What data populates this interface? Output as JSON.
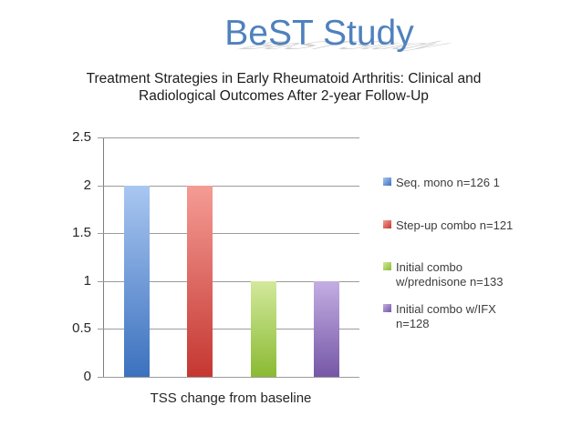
{
  "header": {
    "title": "BeST Study",
    "subtitle_line1": "Treatment Strategies in Early Rheumatoid Arthritis: Clinical and",
    "subtitle_line2": "Radiological Outcomes After 2-year Follow-Up"
  },
  "colors": {
    "title_blue": "#4f81bd",
    "axis_line_gray": "#7f7f7f",
    "gridline_gray": "#9b9b9b",
    "text_dark": "#262626",
    "legend_text_gray": "#3d3d3d"
  },
  "chart_data": {
    "type": "bar",
    "title": "",
    "xlabel": "TSS change from baseline",
    "ylabel": "",
    "ylim": [
      0,
      2.5
    ],
    "ytick_step": 0.5,
    "yticks": [
      "2.5",
      "2",
      "1.5",
      "1",
      "0.5",
      "0"
    ],
    "grid": true,
    "legend_position": "right",
    "series": [
      {
        "name": "Seq. mono n=126 1",
        "value": 2,
        "color_top": "#a9c7f1",
        "color_bottom": "#3b71be"
      },
      {
        "name": "Step-up combo n=121",
        "value": 2,
        "color_top": "#f49c95",
        "color_bottom": "#c53731"
      },
      {
        "name": "Initial combo w/prednisone n=133",
        "value": 1,
        "color_top": "#d2e99b",
        "color_bottom": "#8aba33"
      },
      {
        "name": "Initial combo w/IFX n=128",
        "value": 1,
        "color_top": "#c3aee2",
        "color_bottom": "#7657a7"
      }
    ],
    "legend": [
      {
        "lines": [
          "Seq. mono n=126 1"
        ]
      },
      {
        "lines": [
          "Step-up combo n=121"
        ]
      },
      {
        "lines": [
          "Initial combo",
          "w/prednisone n=133"
        ]
      },
      {
        "lines": [
          "Initial combo w/IFX",
          "n=128"
        ]
      }
    ]
  }
}
